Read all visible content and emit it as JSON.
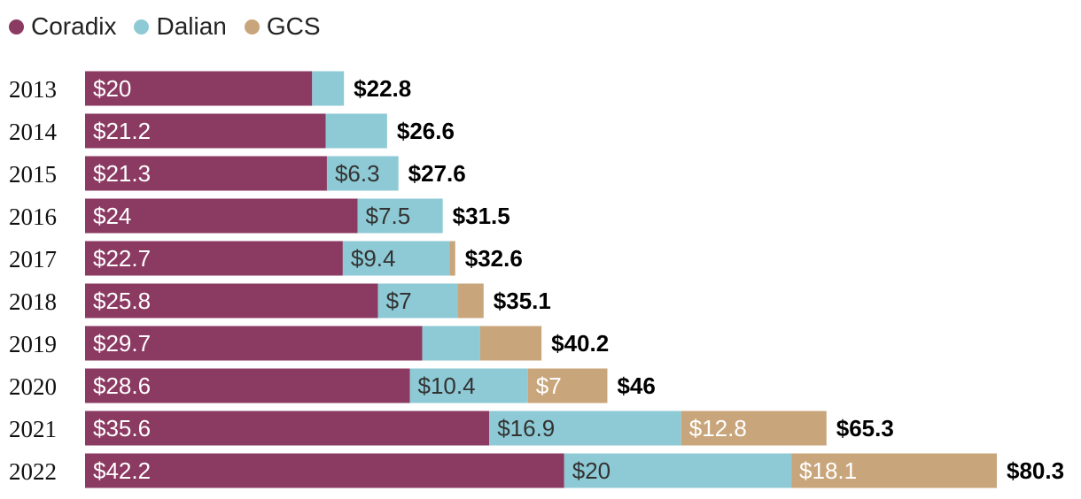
{
  "chart_data": {
    "type": "bar",
    "orientation": "horizontal",
    "stacked": true,
    "categories": [
      "2013",
      "2014",
      "2015",
      "2016",
      "2017",
      "2018",
      "2019",
      "2020",
      "2021",
      "2022"
    ],
    "series": [
      {
        "name": "Coradix",
        "color": "#8B3A62",
        "values": [
          20,
          21.2,
          21.3,
          24,
          22.7,
          25.8,
          29.7,
          28.6,
          35.6,
          42.2
        ],
        "labels": [
          "$20",
          "$21.2",
          "$21.3",
          "$24",
          "$22.7",
          "$25.8",
          "$29.7",
          "$28.6",
          "$35.6",
          "$42.2"
        ]
      },
      {
        "name": "Dalian",
        "color": "#8ECAD5",
        "values": [
          2.8,
          5.4,
          6.3,
          7.5,
          9.4,
          7,
          5.1,
          10.4,
          16.9,
          20
        ],
        "labels": [
          "",
          "",
          "$6.3",
          "$7.5",
          "$9.4",
          "$7",
          "",
          "$10.4",
          "$16.9",
          "$20"
        ]
      },
      {
        "name": "GCS",
        "color": "#C9A57B",
        "values": [
          0,
          0,
          0,
          0,
          0.5,
          2.3,
          5.4,
          7,
          12.8,
          18.1
        ],
        "labels": [
          "",
          "",
          "",
          "",
          "",
          "",
          "",
          "$7",
          "$12.8",
          "$18.1"
        ]
      }
    ],
    "totals": [
      22.8,
      26.6,
      27.6,
      31.5,
      32.6,
      35.1,
      40.2,
      46,
      65.3,
      80.3
    ],
    "total_labels": [
      "$22.8",
      "$26.6",
      "$27.6",
      "$31.5",
      "$32.6",
      "$35.1",
      "$40.2",
      "$46",
      "$65.3",
      "$80.3"
    ],
    "title": "",
    "xlabel": "",
    "ylabel": "",
    "xlim": [
      0,
      80.3
    ],
    "grid": false,
    "legend_position": "top-left"
  }
}
